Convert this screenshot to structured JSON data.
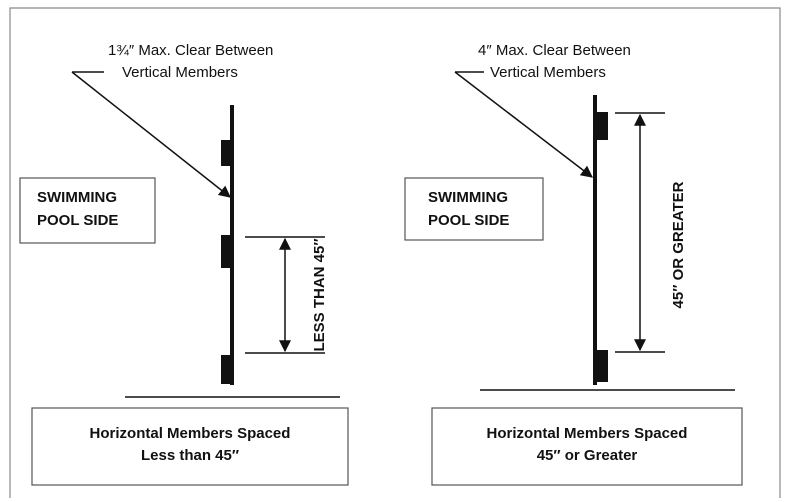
{
  "panels": [
    {
      "annotation": [
        "1¾″ Max. Clear Between",
        "Vertical Members"
      ],
      "side_label": [
        "SWIMMING",
        "POOL SIDE"
      ],
      "dimension_label": "LESS THAN 45″",
      "caption": [
        "Horizontal Members Spaced",
        "Less than 45″"
      ]
    },
    {
      "annotation": [
        "4″ Max. Clear Between",
        "Vertical Members"
      ],
      "side_label": [
        "SWIMMING",
        "POOL SIDE"
      ],
      "dimension_label": "45″ OR GREATER",
      "caption": [
        "Horizontal Members Spaced",
        "45″ or Greater"
      ]
    }
  ]
}
